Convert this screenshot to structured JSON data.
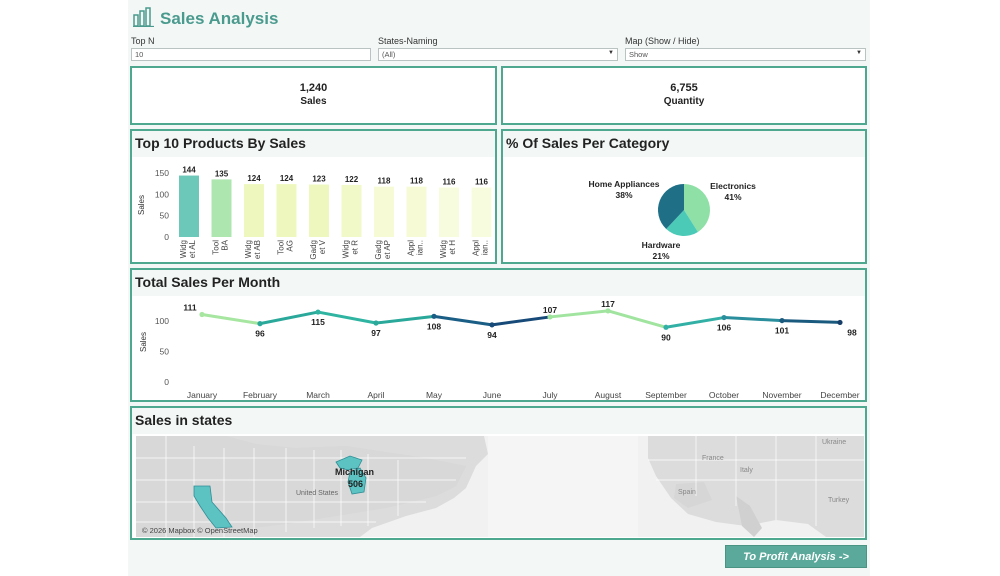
{
  "header": {
    "title": "Sales Analysis"
  },
  "filters": {
    "top_n": {
      "label": "Top N",
      "value": "10"
    },
    "states": {
      "label": "States-Naming",
      "value": "(All)"
    },
    "map": {
      "label": "Map (Show / Hide)",
      "value": "Show"
    }
  },
  "kpis": {
    "sales": {
      "value": "1,240",
      "label": "Sales"
    },
    "quantity": {
      "value": "6,755",
      "label": "Quantity"
    }
  },
  "top_products": {
    "title": "Top 10 Products By Sales",
    "chart_data": {
      "type": "bar",
      "ylabel": "Sales",
      "ylim": [
        0,
        150
      ],
      "yticks": [
        0,
        50,
        100,
        150
      ],
      "categories": [
        [
          "Widg",
          "et AL"
        ],
        [
          "Tool",
          "BA"
        ],
        [
          "Widg",
          "et AB"
        ],
        [
          "Tool",
          "AG"
        ],
        [
          "Gadg",
          "et V"
        ],
        [
          "Widg",
          "et R"
        ],
        [
          "Gadg",
          "et AP"
        ],
        [
          "Appl",
          "ian.."
        ],
        [
          "Widg",
          "et H"
        ],
        [
          "Appl",
          "ian.."
        ]
      ],
      "values": [
        144,
        135,
        124,
        124,
        123,
        122,
        118,
        118,
        116,
        116
      ],
      "colors": [
        "#6cc8b8",
        "#aee6b0",
        "#eef8be",
        "#eef8be",
        "#eef8be",
        "#f2f9c8",
        "#f6fbd6",
        "#f6fbd6",
        "#f8fcde",
        "#f8fcde"
      ]
    }
  },
  "category_pie": {
    "title": "% Of Sales Per Category",
    "chart_data": {
      "type": "pie",
      "slices": [
        {
          "name": "Electronics",
          "pct": 41,
          "color": "#8ee0a6"
        },
        {
          "name": "Hardware",
          "pct": 21,
          "color": "#4ccab8"
        },
        {
          "name": "Home Appliances",
          "pct": 38,
          "color": "#1f6f86"
        }
      ]
    }
  },
  "monthly": {
    "title": "Total Sales Per Month",
    "chart_data": {
      "type": "line",
      "ylabel": "Sales",
      "ylim": [
        0,
        125
      ],
      "yticks": [
        0,
        50,
        100
      ],
      "categories": [
        "January",
        "February",
        "March",
        "April",
        "May",
        "June",
        "July",
        "August",
        "September",
        "October",
        "November",
        "December"
      ],
      "values": [
        111,
        96,
        115,
        97,
        108,
        94,
        107,
        117,
        90,
        106,
        101,
        98
      ],
      "colors": [
        "#a6e6a0",
        "#2aa89a",
        "#2fb4a2",
        "#2aa89a",
        "#1a5e86",
        "#174a78",
        "#a0e4a0",
        "#a0e4a0",
        "#32b0a6",
        "#2a8e9c",
        "#1a5a7e",
        "#163e68"
      ]
    }
  },
  "map": {
    "title": "Sales in states",
    "state": "Michigan",
    "value": "506",
    "attribution": "© 2026 Mapbox © OpenStreetMap",
    "places": [
      "United States",
      "Ukraine",
      "France",
      "Italy",
      "Spain",
      "Turkey"
    ]
  },
  "nav_button": "To Profit Analysis ->"
}
